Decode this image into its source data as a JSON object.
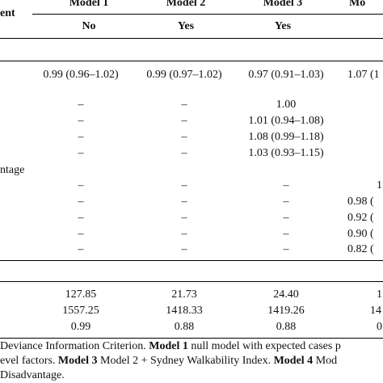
{
  "header": {
    "stub": "ent",
    "models": [
      "Model 1",
      "Model 2",
      "Model 3",
      "Mo"
    ],
    "adjusted": [
      "No",
      "Yes",
      "Yes",
      ""
    ]
  },
  "rows": {
    "r1": [
      "0.99 (0.96–1.02)",
      "0.99 (0.97–1.02)",
      "0.97 (0.91–1.03)",
      "1.07 (1"
    ],
    "walk1": [
      "–",
      "–",
      "1.00",
      ""
    ],
    "walk2": [
      "–",
      "–",
      "1.01 (0.94–1.08)",
      ""
    ],
    "walk3": [
      "–",
      "–",
      "1.08 (0.99–1.18)",
      ""
    ],
    "walk4": [
      "–",
      "–",
      "1.03 (0.93–1.15)",
      ""
    ],
    "disadv_label": "ntage",
    "dis1": [
      "–",
      "–",
      "–",
      "1"
    ],
    "dis2": [
      "–",
      "–",
      "–",
      "0.98 ("
    ],
    "dis3": [
      "–",
      "–",
      "–",
      "0.92 ("
    ],
    "dis4": [
      "–",
      "–",
      "–",
      "0.90 ("
    ],
    "dis5": [
      "–",
      "–",
      "–",
      "0.82 ("
    ]
  },
  "stats": {
    "row1": [
      "127.85",
      "21.73",
      "24.40",
      "1"
    ],
    "row2": [
      "1557.25",
      "1418.33",
      "1419.26",
      "14"
    ],
    "row3": [
      "0.99",
      "0.88",
      "0.88",
      "0"
    ]
  },
  "footnote": {
    "line1_a": "Deviance Information Criterion. ",
    "line1_b": "Model 1",
    "line1_c": " null model with expected cases p",
    "line2_a": "evel factors. ",
    "line2_b": "Model 3",
    "line2_c": " Model 2 + Sydney Walkability Index. ",
    "line2_d": "Model 4",
    "line2_e": " Mod",
    "line3": " Disadvantage."
  }
}
